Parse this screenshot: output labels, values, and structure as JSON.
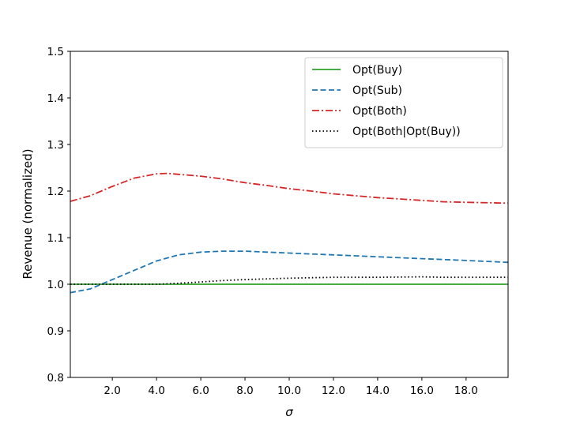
{
  "chart_data": {
    "type": "line",
    "title": "",
    "xlabel": "σ",
    "ylabel": "Revenue (normalized)",
    "xlim": [
      0.1,
      19.9
    ],
    "ylim": [
      0.8,
      1.5
    ],
    "xticks": [
      2.0,
      4.0,
      6.0,
      8.0,
      10.0,
      12.0,
      14.0,
      16.0,
      18.0
    ],
    "xtick_labels": [
      "2.0",
      "4.0",
      "6.0",
      "8.0",
      "10.0",
      "12.0",
      "14.0",
      "16.0",
      "18.0"
    ],
    "yticks": [
      0.8,
      0.9,
      1.0,
      1.1,
      1.2,
      1.3,
      1.4,
      1.5
    ],
    "ytick_labels": [
      "0.8",
      "0.9",
      "1.0",
      "1.1",
      "1.2",
      "1.3",
      "1.4",
      "1.5"
    ],
    "grid": false,
    "legend_position": "top-right",
    "series": [
      {
        "name": "Opt(Buy)",
        "color": "#2ca02c",
        "style": "solid",
        "x": [
          0.1,
          2,
          4,
          6,
          8,
          10,
          12,
          14,
          16,
          18,
          19.9
        ],
        "y": [
          1.0,
          1.0,
          1.0,
          1.0,
          1.0,
          1.0,
          1.0,
          1.0,
          1.0,
          1.0,
          1.0
        ]
      },
      {
        "name": "Opt(Sub)",
        "color": "#1f77b4",
        "style": "dashed",
        "x": [
          0.1,
          1,
          2,
          3,
          4,
          5,
          6,
          7,
          8,
          9,
          10,
          11,
          12,
          13,
          14,
          15,
          16,
          17,
          18,
          19,
          19.9
        ],
        "y": [
          0.982,
          0.99,
          1.01,
          1.03,
          1.05,
          1.063,
          1.069,
          1.071,
          1.071,
          1.069,
          1.067,
          1.065,
          1.063,
          1.061,
          1.059,
          1.057,
          1.055,
          1.053,
          1.051,
          1.049,
          1.047
        ]
      },
      {
        "name": "Opt(Both)",
        "color": "#d62728",
        "style": "dashdot",
        "x": [
          0.1,
          1,
          2,
          3,
          4,
          4.5,
          5,
          6,
          7,
          8,
          9,
          10,
          11,
          12,
          13,
          14,
          15,
          16,
          17,
          18,
          19,
          19.9
        ],
        "y": [
          1.178,
          1.19,
          1.21,
          1.228,
          1.237,
          1.238,
          1.236,
          1.232,
          1.226,
          1.218,
          1.212,
          1.205,
          1.2,
          1.194,
          1.19,
          1.186,
          1.183,
          1.18,
          1.177,
          1.176,
          1.175,
          1.174
        ]
      },
      {
        "name": "Opt(Both|Opt(Buy))",
        "color": "#000000",
        "style": "dotted",
        "x": [
          0.1,
          2,
          4,
          5,
          6,
          7,
          8,
          10,
          12,
          14,
          16,
          17,
          18,
          19.9
        ],
        "y": [
          1.0,
          1.0,
          1.0,
          1.002,
          1.005,
          1.008,
          1.01,
          1.013,
          1.015,
          1.015,
          1.016,
          1.015,
          1.015,
          1.015
        ]
      }
    ]
  }
}
